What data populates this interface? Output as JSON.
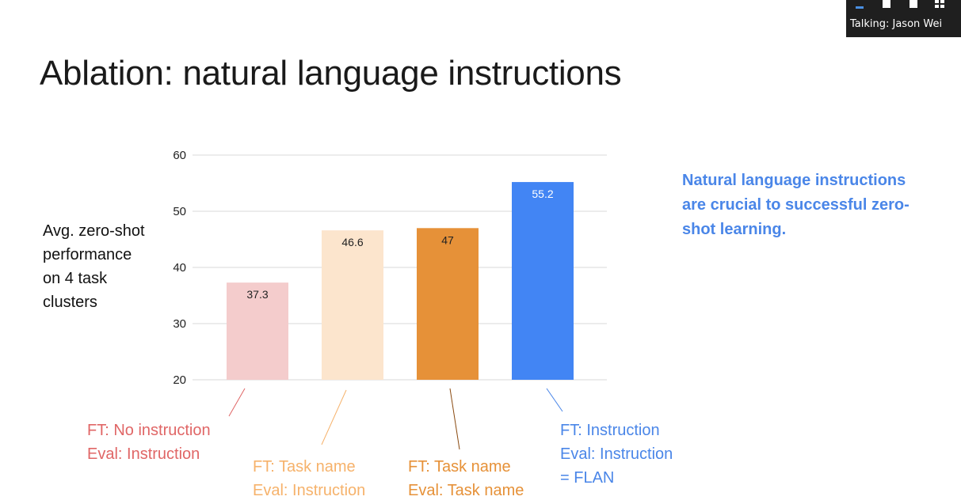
{
  "slide": {
    "title": "Ablation: natural language instructions",
    "ylabel_lines": [
      "Avg. zero-shot",
      "performance",
      "on 4 task",
      "clusters"
    ],
    "takeaway": "Natural language instructions are crucial to successful zero-shot learning."
  },
  "captions": [
    {
      "lines": [
        "FT: No instruction",
        "Eval: Instruction"
      ],
      "color": "#e06666"
    },
    {
      "lines": [
        "FT: Task name",
        "Eval: Instruction"
      ],
      "color": "#f6b26b"
    },
    {
      "lines": [
        "FT: Task name",
        "Eval: Task name"
      ],
      "color": "#e69138"
    },
    {
      "lines": [
        "FT: Instruction",
        "Eval: Instruction",
        "= FLAN"
      ],
      "color": "#4a86e8"
    }
  ],
  "overlay": {
    "talking_text": "Talking: Jason Wei",
    "icons": [
      "minimize-icon",
      "single-view-icon",
      "speaker-view-icon",
      "gallery-view-icon"
    ]
  },
  "chart_data": {
    "type": "bar",
    "categories": [
      "No instruction / Instruction",
      "Task name / Instruction",
      "Task name / Task name",
      "Instruction / Instruction (FLAN)"
    ],
    "values": [
      37.3,
      46.6,
      47,
      55.2
    ],
    "value_labels": [
      "37.3",
      "46.6",
      "47",
      "55.2"
    ],
    "bar_colors": [
      "#f4cccc",
      "#fce5cd",
      "#e69138",
      "#4285f4"
    ],
    "label_colors": [
      "#222222",
      "#222222",
      "#222222",
      "#ffffff"
    ],
    "yticks": [
      20,
      30,
      40,
      50,
      60
    ],
    "ylim": [
      20,
      60
    ],
    "grid": true,
    "title": "",
    "xlabel": "",
    "ylabel": "Avg. zero-shot performance on 4 task clusters"
  }
}
